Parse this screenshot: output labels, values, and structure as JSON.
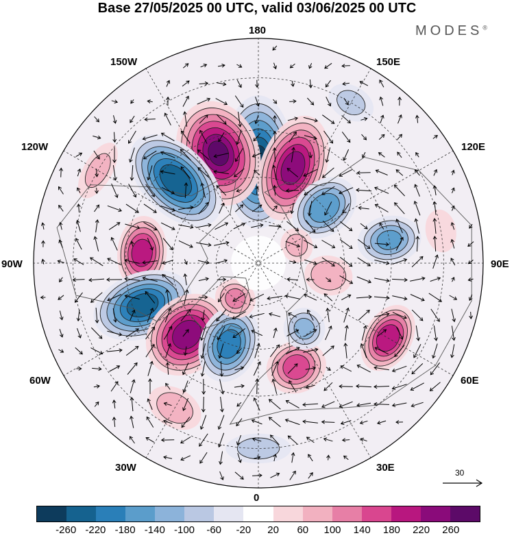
{
  "title": "Base 27/05/2025 00 UTC, valid 03/06/2025 00 UTC",
  "brand": "MODES",
  "brand_mark": "®",
  "map": {
    "projection": "north-polar-stereographic",
    "longitude_labels": {
      "lon_180": "180",
      "lon_150W": "150W",
      "lon_150E": "150E",
      "lon_120W": "120W",
      "lon_120E": "120E",
      "lon_90W": "90W",
      "lon_90E": "90E",
      "lon_60W": "60W",
      "lon_60E": "60E",
      "lon_30W": "30W",
      "lon_30E": "30E",
      "lon_0": "0"
    },
    "anomaly_cells": [
      {
        "lon": 180,
        "lat": 55,
        "value": -270,
        "shape": [
          1,
          3.2
        ]
      },
      {
        "lon": 160,
        "lat": 55,
        "value": 240,
        "shape": [
          1,
          2.8
        ]
      },
      {
        "lon": -160,
        "lat": 50,
        "value": 260,
        "shape": [
          1.2,
          2.6
        ]
      },
      {
        "lon": -135,
        "lat": 50,
        "value": -250,
        "shape": [
          1,
          2.8
        ]
      },
      {
        "lon": -95,
        "lat": 50,
        "value": 200,
        "shape": [
          1.3,
          1.3
        ]
      },
      {
        "lon": -70,
        "lat": 48,
        "value": -240,
        "shape": [
          1,
          2.6
        ]
      },
      {
        "lon": -45,
        "lat": 55,
        "value": 250,
        "shape": [
          1.1,
          2.2
        ]
      },
      {
        "lon": -20,
        "lat": 60,
        "value": -200,
        "shape": [
          1,
          2.2
        ]
      },
      {
        "lon": -33,
        "lat": 75,
        "value": 100,
        "shape": [
          1,
          1.4
        ]
      },
      {
        "lon": 20,
        "lat": 52,
        "value": 160,
        "shape": [
          1.2,
          1.6
        ]
      },
      {
        "lon": 60,
        "lat": 40,
        "value": 210,
        "shape": [
          1.2,
          1.2
        ]
      },
      {
        "lon": 35,
        "lat": 62,
        "value": -100,
        "shape": [
          1,
          1.6
        ]
      },
      {
        "lon": 100,
        "lat": 45,
        "value": -140,
        "shape": [
          1,
          2.2
        ]
      },
      {
        "lon": 80,
        "lat": 65,
        "value": 90,
        "shape": [
          1,
          2
        ]
      },
      {
        "lon": 130,
        "lat": 60,
        "value": -170,
        "shape": [
          1,
          2.2
        ]
      },
      {
        "lon": 115,
        "lat": 75,
        "value": 60,
        "shape": [
          1,
          1.4
        ]
      },
      {
        "lon": 150,
        "lat": 30,
        "value": -60,
        "shape": [
          1.5,
          1.5
        ]
      },
      {
        "lon": -120,
        "lat": 30,
        "value": 60,
        "shape": [
          2,
          1.2
        ]
      },
      {
        "lon": 100,
        "lat": 30,
        "value": 50,
        "shape": [
          1.4,
          1.4
        ]
      },
      {
        "lon": 0,
        "lat": 30,
        "value": -70,
        "shape": [
          2,
          1.2
        ]
      },
      {
        "lon": -30,
        "lat": 35,
        "value": 80,
        "shape": [
          1.6,
          1.6
        ]
      }
    ]
  },
  "vector_reference": {
    "value": 30,
    "label": "30"
  },
  "colorbar": {
    "colors": [
      "#0d3b5c",
      "#15628f",
      "#2a7fb8",
      "#5b9dcb",
      "#8cb3da",
      "#bac8e3",
      "#e5e6f2",
      "#ffffff",
      "#f8d7dc",
      "#f2b1c0",
      "#e77fa6",
      "#d9468f",
      "#b8177f",
      "#8a0b7a",
      "#5c0a68"
    ],
    "bounds": [
      -300,
      -260,
      -220,
      -180,
      -140,
      -100,
      -60,
      -20,
      20,
      60,
      100,
      140,
      180,
      220,
      260,
      300
    ],
    "tick_labels": [
      "-260",
      "-220",
      "-180",
      "-140",
      "-100",
      "-60",
      "-20",
      "20",
      "60",
      "100",
      "140",
      "180",
      "220",
      "260"
    ]
  }
}
